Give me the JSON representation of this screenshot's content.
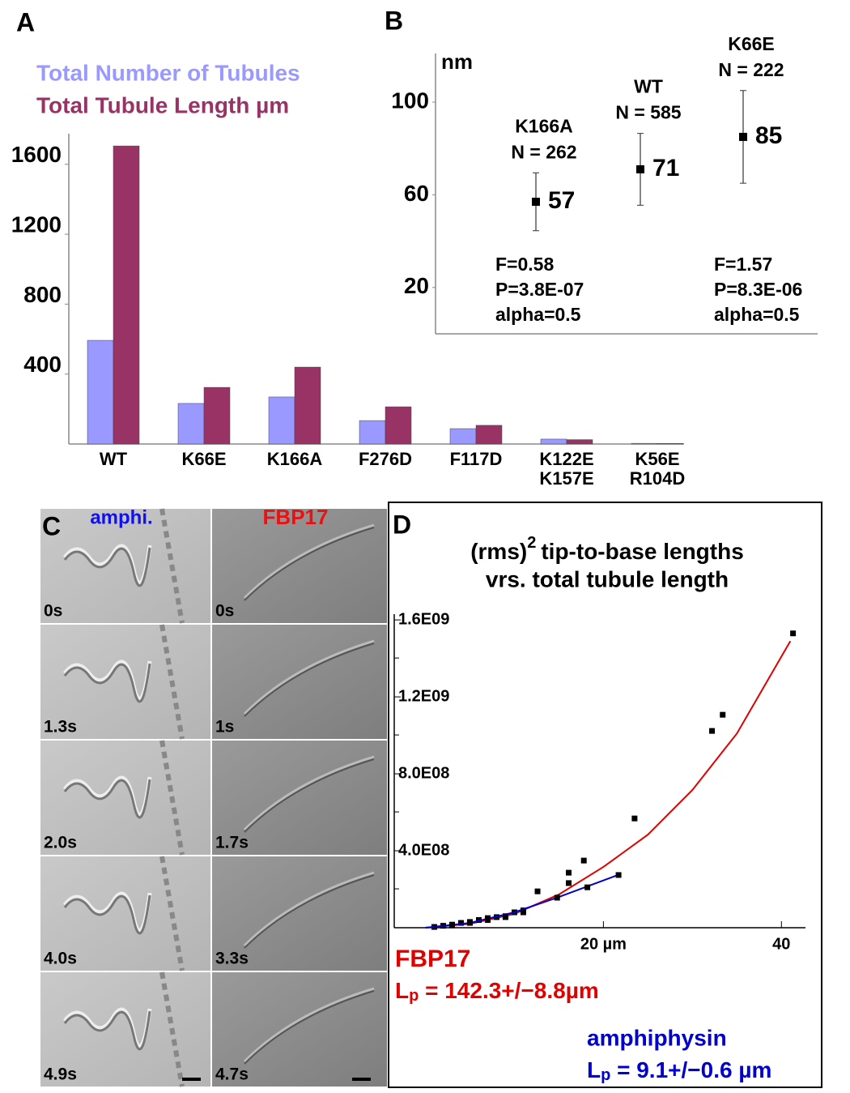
{
  "chart_data": [
    {
      "type": "bar",
      "panel": "A",
      "categories": [
        [
          "WT"
        ],
        [
          "K66E"
        ],
        [
          "K166A"
        ],
        [
          "F276D"
        ],
        [
          "F117D"
        ],
        [
          "K122E",
          "K157E"
        ],
        [
          "K56E",
          "R104D"
        ]
      ],
      "series": [
        {
          "name": "Total Number of Tubules",
          "color": "#9999ff",
          "values": [
            593,
            232,
            269,
            134,
            88,
            28,
            4
          ]
        },
        {
          "name": "Total Tubule Length  µm",
          "color": "#993366",
          "values": [
            1705,
            324,
            440,
            213,
            107,
            25,
            3
          ]
        }
      ],
      "ylim": [
        0,
        1775
      ],
      "yticks": [
        400,
        800,
        1200,
        1600
      ]
    },
    {
      "type": "errorbar",
      "panel": "B",
      "y_label": "nm",
      "categories": [
        "K166A",
        "WT",
        "K66E"
      ],
      "n_labels": [
        "N = 262",
        "N = 585",
        "N = 222"
      ],
      "values": [
        57,
        71,
        85
      ],
      "errors": [
        12.5,
        15.5,
        20
      ],
      "ylim": [
        0,
        121
      ],
      "yticks": [
        20,
        60,
        100
      ],
      "annotations": [
        [
          "F=0.58",
          "P=3.8E-07",
          "alpha=0.5"
        ],
        [
          "F=1.57",
          "P=8.3E-06",
          "alpha=0.5"
        ]
      ]
    },
    {
      "type": "scatter",
      "panel": "D",
      "title": {
        "prefix": "(rms)",
        "superscript": "2",
        "text": "tip-to-base lengths"
      },
      "subtitle": "vrs. total tubule length",
      "xlim": [
        -3.5,
        42.7
      ],
      "xticks": [
        {
          "value": 20,
          "label": "20 µm"
        },
        40
      ],
      "ylim": [
        0,
        1630000000
      ],
      "yticks": [
        {
          "value": 400000000,
          "label": "4.0E08"
        },
        {
          "value": 800000000,
          "label": "8.0E08"
        },
        {
          "value": 1200000000,
          "label": "1.2E09"
        },
        {
          "value": 1600000000,
          "label": "1.6E09"
        }
      ],
      "marker_color": "#000000",
      "series": [
        {
          "name": "FBP17",
          "color": "#e00000",
          "fit_label": {
            "symbol": "L",
            "subscript": "p",
            "text": " = 142.3+/−8.8µm"
          },
          "x": [
            1,
            2,
            3,
            4,
            5,
            6,
            7,
            8,
            9,
            10,
            11,
            12.6,
            16.1,
            16.1,
            17.8,
            23.5,
            32.2,
            33.4,
            41.3
          ],
          "values": [
            4000000,
            10000000,
            16000000,
            25000000,
            30000000,
            40000000,
            50000000,
            55000000,
            60000000,
            80000000,
            90000000,
            189000000,
            232000000,
            286000000,
            349000000,
            568000000,
            1023000000,
            1107000000,
            1530000000
          ],
          "fit_x": [
            0,
            5,
            10,
            15,
            20,
            25,
            30,
            35,
            41
          ],
          "fit_values": [
            0,
            20000000,
            72000000,
            173000000,
            316000000,
            484000000,
            716000000,
            1010000000,
            1490000000
          ]
        },
        {
          "name": "amphiphysin",
          "color": "#0000cc",
          "fit_label": {
            "symbol": "L",
            "subscript": "p",
            "text": " = 9.1+/−0.6 µm"
          },
          "x": [
            3,
            5,
            7,
            9,
            11,
            14.8,
            18.2,
            21.7
          ],
          "values": [
            12000000,
            25000000,
            40000000,
            55000000,
            80000000,
            156000000,
            210000000,
            274000000
          ],
          "fit_x": [
            0,
            5,
            10,
            15,
            21.7
          ],
          "fit_values": [
            0,
            25000000,
            80000000,
            160000000,
            275000000
          ]
        }
      ]
    }
  ],
  "image_panel": {
    "panel": "C",
    "columns": [
      "amphi.",
      "FBP17"
    ],
    "times": [
      [
        "0s",
        "1.3s",
        "2.0s",
        "4.0s",
        "4.9s"
      ],
      [
        "0s",
        "1s",
        "1.7s",
        "3.3s",
        "4.7s"
      ]
    ]
  }
}
